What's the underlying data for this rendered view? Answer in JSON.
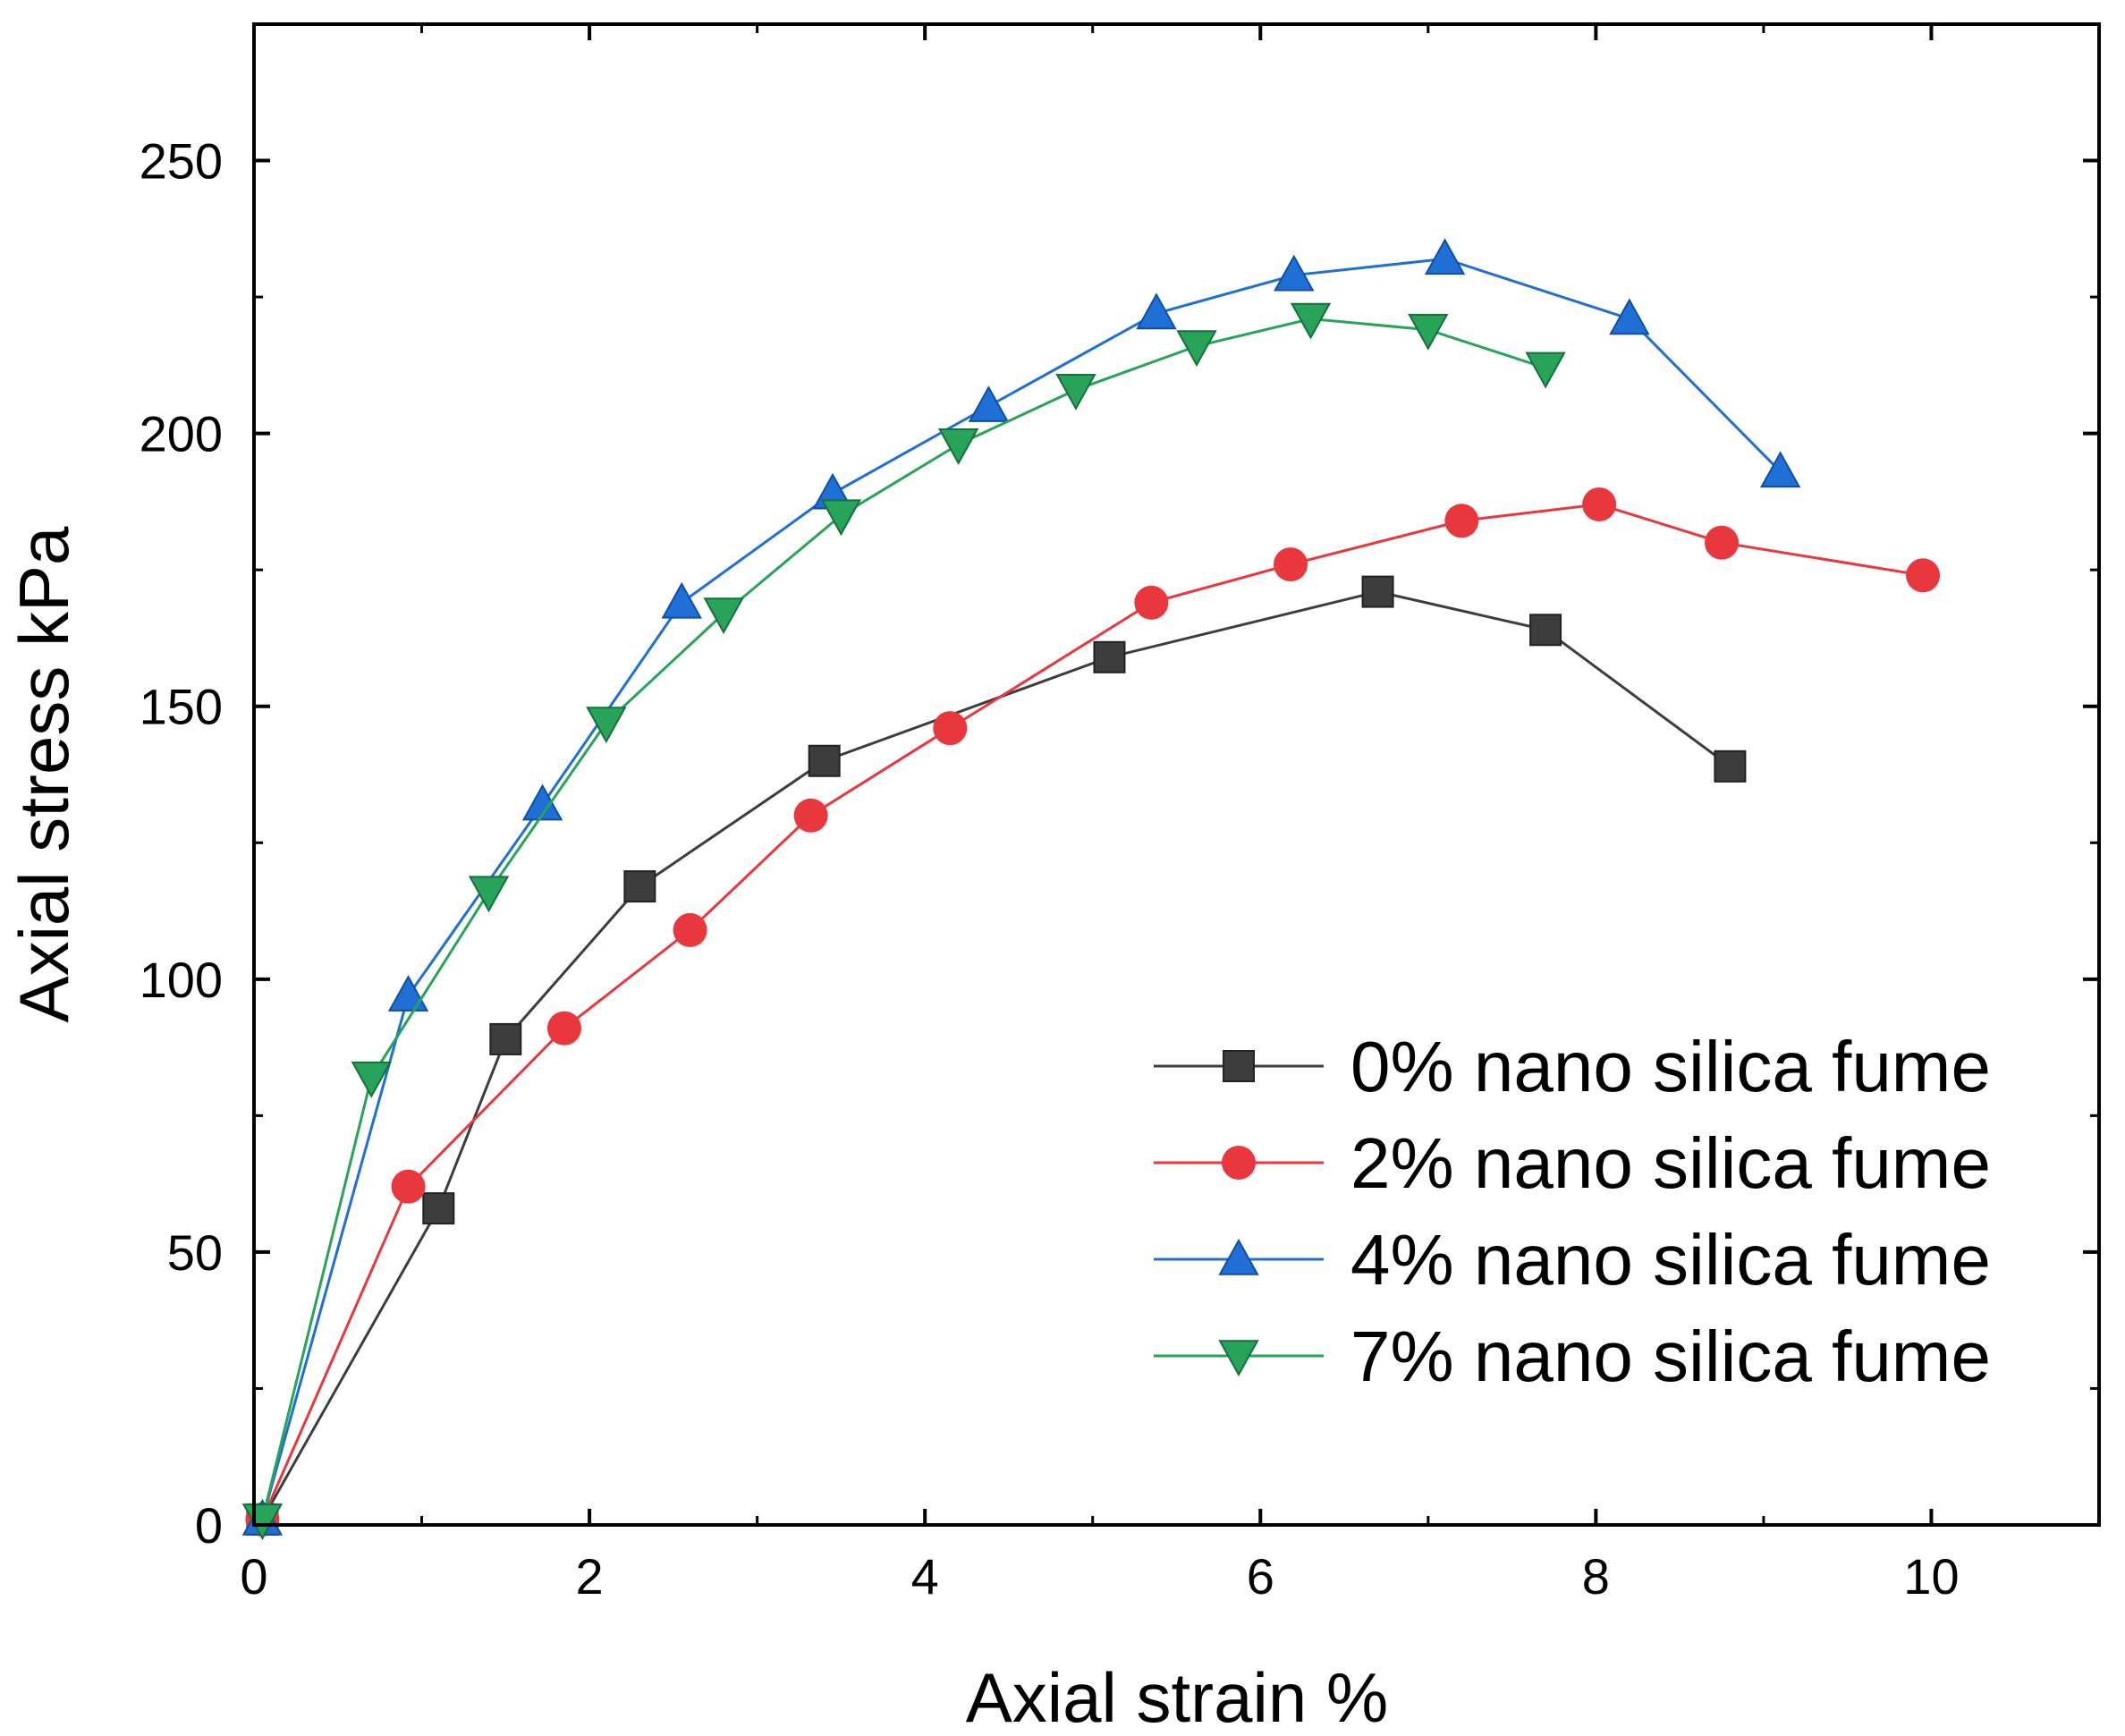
{
  "chart_data": {
    "type": "line",
    "title": "",
    "xlabel": "Axial strain %",
    "ylabel": "Axial stress kPa",
    "xlim": [
      0,
      11
    ],
    "ylim": [
      0,
      275
    ],
    "x_ticks": [
      0,
      2,
      4,
      6,
      8,
      10
    ],
    "y_ticks": [
      0,
      50,
      100,
      150,
      200,
      250
    ],
    "legend_position": "bottom-right",
    "series": [
      {
        "name": "0% nano silica fume",
        "color": "#3d3d3d",
        "marker": "square",
        "x": [
          0.05,
          1.1,
          1.5,
          2.3,
          3.4,
          5.1,
          6.7,
          7.7,
          8.8
        ],
        "y": [
          1,
          58,
          89,
          117,
          140,
          159,
          171,
          164,
          139
        ]
      },
      {
        "name": "2% nano silica fume",
        "color": "#e8383d",
        "marker": "circle",
        "x": [
          0.05,
          0.92,
          1.85,
          2.6,
          3.32,
          4.15,
          5.35,
          6.18,
          7.2,
          8.02,
          8.75,
          9.95
        ],
        "y": [
          1,
          62,
          91,
          109,
          130,
          146,
          169,
          176,
          184,
          187,
          180,
          174
        ]
      },
      {
        "name": "4% nano silica fume",
        "color": "#1f6fd6",
        "marker": "triangle-up",
        "x": [
          0.05,
          0.92,
          1.72,
          2.55,
          3.45,
          4.38,
          5.38,
          6.2,
          7.1,
          8.2,
          9.1
        ],
        "y": [
          1,
          97,
          132,
          169,
          189,
          205,
          222,
          229,
          232,
          221,
          193
        ]
      },
      {
        "name": "7% nano silica fume",
        "color": "#27a35a",
        "marker": "triangle-down",
        "x": [
          0.05,
          0.7,
          1.4,
          2.1,
          2.8,
          3.5,
          4.2,
          4.9,
          5.62,
          6.3,
          7.0,
          7.7
        ],
        "y": [
          1,
          82,
          116,
          147,
          167,
          185,
          198,
          208,
          216,
          221,
          219,
          212
        ]
      }
    ]
  }
}
